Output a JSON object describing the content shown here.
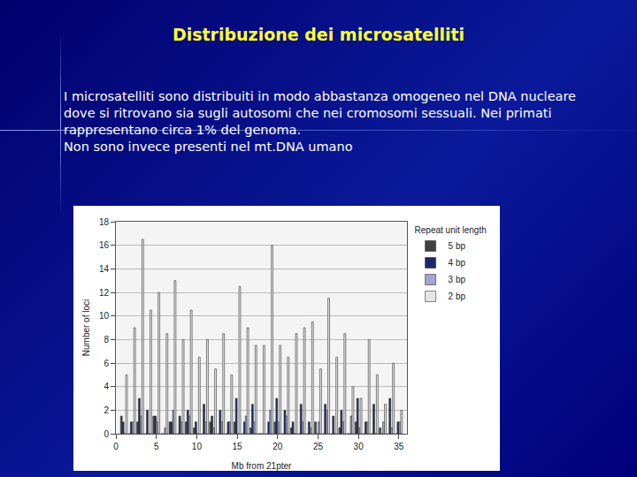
{
  "slide": {
    "title": "Distribuzione dei microsatelliti",
    "lines": [
      "I microsatelliti sono distribuiti in modo abbastanza omogeneo nel DNA nucleare",
      "dove si ritrovano sia sugli autosomi che nei cromosomi sessuali. Nei primati",
      "rappresentano circa 1% del genoma.",
      "Non sono invece presenti nel mt.DNA umano"
    ]
  },
  "chart_data": {
    "type": "bar",
    "x_label": "Mb from 21pter",
    "y_label": "Number of loci",
    "legend_title": "Repeat unit length",
    "x": [
      1,
      2,
      3,
      4,
      5,
      6,
      7,
      8,
      9,
      10,
      11,
      12,
      13,
      14,
      15,
      16,
      17,
      18,
      19,
      20,
      21,
      22,
      23,
      24,
      25,
      26,
      27,
      28,
      29,
      30,
      31,
      32,
      33,
      34,
      35
    ],
    "series": [
      {
        "name": "5 bp",
        "color": "#404040",
        "values": [
          1.5,
          0,
          1,
          0,
          1.5,
          0,
          1,
          0,
          1,
          0.5,
          0,
          1,
          0,
          0,
          1,
          0,
          0.5,
          0,
          0,
          1,
          0,
          0.5,
          0,
          0,
          1,
          0,
          0,
          0.5,
          0,
          1,
          0,
          0,
          0.5,
          0,
          0
        ]
      },
      {
        "name": "4 bp",
        "color": "#1b2a66",
        "values": [
          1,
          1,
          3,
          2,
          1.5,
          0,
          1,
          1.5,
          2,
          1,
          2.5,
          1.5,
          2,
          1,
          3,
          1,
          2.5,
          0,
          1,
          3,
          2,
          1,
          2.5,
          1,
          0,
          2.5,
          1.5,
          2,
          0,
          3,
          1,
          2.5,
          0,
          3,
          1
        ]
      },
      {
        "name": "3 bp",
        "color": "#a4a4d2",
        "values": [
          0,
          1,
          1.5,
          0,
          1,
          0.5,
          2,
          1,
          1.5,
          0,
          1,
          0.5,
          1,
          1,
          0,
          1.5,
          1,
          0,
          2,
          1,
          1.5,
          0,
          1,
          0.5,
          1,
          2,
          0,
          1,
          1.5,
          0.5,
          1,
          0,
          1,
          0.5,
          1
        ]
      },
      {
        "name": "2 bp",
        "color": "#e6e6e6",
        "values": [
          5,
          9,
          16.5,
          10.5,
          12,
          8.5,
          13,
          8,
          10.5,
          6.5,
          8,
          5.5,
          8.5,
          5,
          12.5,
          9,
          7.5,
          7.5,
          16,
          7.5,
          6.5,
          8.5,
          9,
          9.5,
          5.5,
          11.5,
          6.5,
          8.5,
          4,
          3,
          8,
          5,
          2.5,
          6,
          2
        ]
      }
    ],
    "xlim": [
      0,
      36
    ],
    "xticks": [
      0,
      5,
      10,
      15,
      20,
      25,
      30,
      35
    ],
    "ylim": [
      0,
      18
    ],
    "yticks": [
      0,
      2,
      4,
      6,
      8,
      10,
      12,
      14,
      16,
      18
    ],
    "grid": true,
    "legend": "top-right"
  }
}
